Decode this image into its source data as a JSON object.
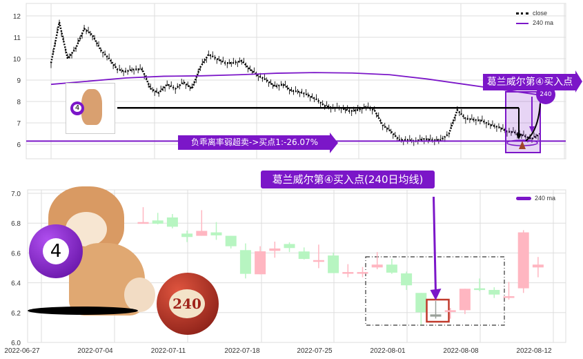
{
  "colors": {
    "purple": "#7b16c8",
    "up": "#ffb6c1",
    "down": "#b7f5c1",
    "special": "#9aa09a",
    "box_red": "#c0392b"
  },
  "chart_data": [
    {
      "type": "line",
      "ylim": [
        5.4,
        12.5
      ],
      "yticks": [
        "6",
        "7",
        "8",
        "9",
        "10",
        "11",
        "12"
      ],
      "grid": true,
      "legend_placement": "top-right",
      "series": [
        {
          "name": "close",
          "style": "dotted",
          "color": "#000000",
          "values": [
            9.8,
            11.7,
            10.0,
            10.5,
            11.4,
            11.1,
            10.4,
            10.0,
            9.5,
            9.4,
            9.5,
            9.5,
            8.6,
            8.4,
            8.8,
            8.6,
            8.9,
            8.6,
            9.6,
            10.2,
            10.0,
            9.8,
            9.8,
            9.9,
            9.5,
            9.2,
            9.0,
            8.7,
            8.8,
            8.5,
            8.45,
            8.3,
            8.1,
            7.8,
            7.7,
            7.7,
            7.55,
            7.6,
            7.75,
            7.6,
            6.9,
            6.6,
            6.2,
            6.2,
            6.15,
            6.25,
            6.2,
            6.2,
            6.5,
            7.6,
            7.2,
            7.15,
            7.1,
            6.9,
            6.8,
            6.6,
            6.55,
            6.4,
            6.25,
            6.5
          ]
        },
        {
          "name": "240 ma",
          "color": "#7b16c8",
          "values": [
            8.8,
            8.95,
            9.1,
            9.18,
            9.2,
            9.25,
            9.32,
            9.35,
            9.33,
            9.25,
            9.05,
            8.8,
            8.55,
            8.3
          ]
        }
      ],
      "hline": 6.15,
      "hline_from_price": 7.7,
      "annotations": {
        "oversold": "负乖离率弱超卖->买点1:-26.07%",
        "buy_point": "葛兰威尔第④买入点",
        "ball": "240",
        "dog_ball": "4"
      }
    },
    {
      "type": "candlestick",
      "title": "葛兰威尔第④买入点(240日均线)",
      "ylim": [
        6.0,
        7.0
      ],
      "yticks": [
        "6.0",
        "6.2",
        "6.4",
        "6.6",
        "6.8",
        "7.0"
      ],
      "xticks": [
        "2022-06-27",
        "2022-07-04",
        "2022-07-11",
        "2022-07-18",
        "2022-07-25",
        "2022-08-01",
        "2022-08-08",
        "2022-08-12"
      ],
      "grid": true,
      "legend": [
        "240 ma"
      ],
      "legend_placement": "top-right",
      "candles": [
        {
          "o": 6.8,
          "c": 6.807,
          "h": 6.907,
          "l": 6.799,
          "color": "up"
        },
        {
          "o": 6.818,
          "c": 6.796,
          "h": 6.869,
          "l": 6.792,
          "color": "down"
        },
        {
          "o": 6.838,
          "c": 6.776,
          "h": 6.861,
          "l": 6.765,
          "color": "down"
        },
        {
          "o": 6.73,
          "c": 6.707,
          "h": 6.75,
          "l": 6.673,
          "color": "down"
        },
        {
          "o": 6.715,
          "c": 6.748,
          "h": 6.887,
          "l": 6.715,
          "color": "up"
        },
        {
          "o": 6.738,
          "c": 6.718,
          "h": 6.807,
          "l": 6.688,
          "color": "down"
        },
        {
          "o": 6.715,
          "c": 6.645,
          "h": 6.715,
          "l": 6.63,
          "color": "down"
        },
        {
          "o": 6.619,
          "c": 6.46,
          "h": 6.664,
          "l": 6.429,
          "color": "down"
        },
        {
          "o": 6.457,
          "c": 6.611,
          "h": 6.645,
          "l": 6.457,
          "color": "up"
        },
        {
          "o": 6.614,
          "c": 6.63,
          "h": 6.676,
          "l": 6.568,
          "color": "up"
        },
        {
          "o": 6.66,
          "c": 6.633,
          "h": 6.671,
          "l": 6.606,
          "color": "down"
        },
        {
          "o": 6.61,
          "c": 6.56,
          "h": 6.637,
          "l": 6.556,
          "color": "down"
        },
        {
          "o": 6.55,
          "c": 6.552,
          "h": 6.656,
          "l": 6.498,
          "color": "up"
        },
        {
          "o": 6.583,
          "c": 6.465,
          "h": 6.602,
          "l": 6.465,
          "color": "down"
        },
        {
          "o": 6.466,
          "c": 6.472,
          "h": 6.525,
          "l": 6.437,
          "color": "up"
        },
        {
          "o": 6.466,
          "c": 6.472,
          "h": 6.506,
          "l": 6.437,
          "color": "up"
        },
        {
          "o": 6.503,
          "c": 6.522,
          "h": 6.606,
          "l": 6.491,
          "color": "up"
        },
        {
          "o": 6.522,
          "c": 6.468,
          "h": 6.56,
          "l": 6.46,
          "color": "down"
        },
        {
          "o": 6.463,
          "c": 6.383,
          "h": 6.475,
          "l": 6.352,
          "color": "down"
        },
        {
          "o": 6.332,
          "c": 6.202,
          "h": 6.332,
          "l": 6.12,
          "color": "down"
        },
        {
          "o": 6.188,
          "c": 6.173,
          "h": 6.278,
          "l": 6.16,
          "color": "special"
        },
        {
          "o": 6.204,
          "c": 6.216,
          "h": 6.231,
          "l": 6.159,
          "color": "up"
        },
        {
          "o": 6.216,
          "c": 6.36,
          "h": 6.36,
          "l": 6.19,
          "color": "up"
        },
        {
          "o": 6.363,
          "c": 6.355,
          "h": 6.429,
          "l": 6.344,
          "color": "down"
        },
        {
          "o": 6.352,
          "c": 6.321,
          "h": 6.37,
          "l": 6.298,
          "color": "down"
        },
        {
          "o": 6.306,
          "c": 6.31,
          "h": 6.406,
          "l": 6.287,
          "color": "up"
        },
        {
          "o": 6.363,
          "c": 6.738,
          "h": 6.753,
          "l": 6.332,
          "color": "up"
        },
        {
          "o": 6.503,
          "c": 6.522,
          "h": 6.573,
          "l": 6.437,
          "color": "up"
        }
      ],
      "highlight_index": 20,
      "annotations": {
        "ball_240": "240",
        "ball_4": "4"
      }
    }
  ]
}
